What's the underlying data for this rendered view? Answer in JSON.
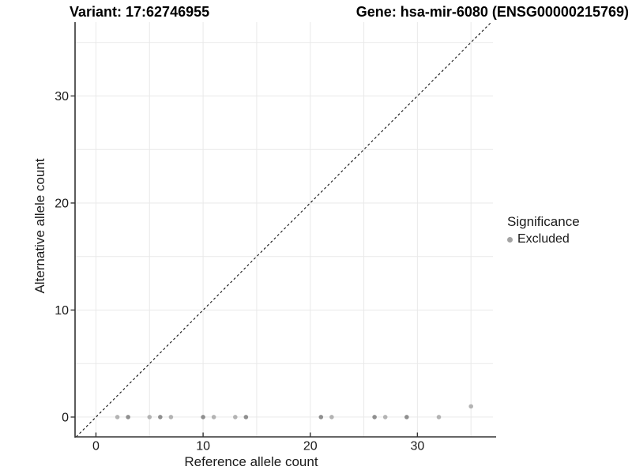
{
  "figure": {
    "title_left": "Variant: 17:62746955",
    "title_right": "Gene: hsa-mir-6080 (ENSG00000215769)"
  },
  "legend": {
    "title": "Significance",
    "items": [
      {
        "label": "Excluded",
        "color": "#a3a3a3"
      }
    ]
  },
  "chart_data": {
    "type": "scatter",
    "xlabel": "Reference allele count",
    "ylabel": "Alternative allele count",
    "xlim": [
      -1.95,
      37.05
    ],
    "ylim": [
      -1.85,
      36.9
    ],
    "x_ticks": [
      0,
      10,
      20,
      30
    ],
    "y_ticks": [
      0,
      10,
      20,
      30
    ],
    "grid": true,
    "grid_step": 5,
    "grid_range": [
      0,
      35
    ],
    "identity_line": {
      "equation": "y = x",
      "style": "dashed",
      "color": "#111111"
    },
    "series": [
      {
        "name": "Excluded",
        "marker_color_single": "#b3b3b3",
        "marker_color_overlap": "#8f8f8f",
        "points": [
          {
            "x": 2,
            "y": 0,
            "overlap": 1
          },
          {
            "x": 3,
            "y": 0,
            "overlap": 2
          },
          {
            "x": 5,
            "y": 0,
            "overlap": 1
          },
          {
            "x": 6,
            "y": 0,
            "overlap": 2
          },
          {
            "x": 7,
            "y": 0,
            "overlap": 1
          },
          {
            "x": 10,
            "y": 0,
            "overlap": 2
          },
          {
            "x": 11,
            "y": 0,
            "overlap": 1
          },
          {
            "x": 13,
            "y": 0,
            "overlap": 1
          },
          {
            "x": 14,
            "y": 0,
            "overlap": 2
          },
          {
            "x": 21,
            "y": 0,
            "overlap": 2
          },
          {
            "x": 22,
            "y": 0,
            "overlap": 1
          },
          {
            "x": 26,
            "y": 0,
            "overlap": 2
          },
          {
            "x": 27,
            "y": 0,
            "overlap": 1
          },
          {
            "x": 29,
            "y": 0,
            "overlap": 2
          },
          {
            "x": 32,
            "y": 0,
            "overlap": 1
          },
          {
            "x": 35,
            "y": 1,
            "overlap": 1
          }
        ]
      }
    ],
    "colors": {
      "grid": "#e9e9e9",
      "axis": "#333333",
      "tick_text": "#1a1a1a",
      "background": "#ffffff"
    }
  }
}
